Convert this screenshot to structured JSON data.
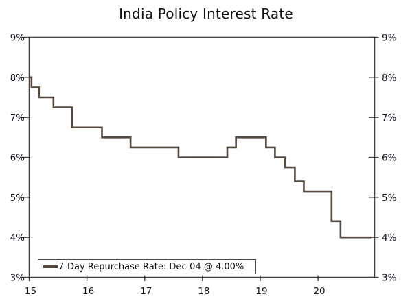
{
  "colors": {
    "background": "#ffffff",
    "axis": "#3f3f3f",
    "text": "#15151f",
    "line": "#564a3f"
  },
  "chart_data": {
    "type": "line",
    "style": "step-after",
    "title": "India Policy Interest Rate",
    "legend": {
      "label": "7-Day Repurchase Rate: Dec-04 @ 4.00%",
      "position": "bottom-left"
    },
    "grid": false,
    "y_axis_mirrored": true,
    "xlim": [
      2015,
      2020.98
    ],
    "ylim": [
      3,
      9
    ],
    "ylabel": "",
    "xlabel": "",
    "x_ticks": [
      {
        "t": 2015,
        "label": "15"
      },
      {
        "t": 2016,
        "label": "16"
      },
      {
        "t": 2017,
        "label": "17"
      },
      {
        "t": 2018,
        "label": "18"
      },
      {
        "t": 2019,
        "label": "19"
      },
      {
        "t": 2020,
        "label": "20"
      }
    ],
    "y_ticks": [
      {
        "v": 3,
        "label": "3%"
      },
      {
        "v": 4,
        "label": "4%"
      },
      {
        "v": 5,
        "label": "5%"
      },
      {
        "v": 6,
        "label": "6%"
      },
      {
        "v": 7,
        "label": "7%"
      },
      {
        "v": 8,
        "label": "8%"
      },
      {
        "v": 9,
        "label": "9%"
      }
    ],
    "series": [
      {
        "name": "7-Day Repurchase Rate",
        "color": "#564a3f",
        "start": {
          "t": 2015.0,
          "rate": 8.0
        },
        "steps": [
          {
            "t": 2015.04,
            "rate": 7.75
          },
          {
            "t": 2015.17,
            "rate": 7.5
          },
          {
            "t": 2015.42,
            "rate": 7.25
          },
          {
            "t": 2015.745,
            "rate": 6.75
          },
          {
            "t": 2016.26,
            "rate": 6.5
          },
          {
            "t": 2016.755,
            "rate": 6.25
          },
          {
            "t": 2017.585,
            "rate": 6.0
          },
          {
            "t": 2018.43,
            "rate": 6.25
          },
          {
            "t": 2018.58,
            "rate": 6.5
          },
          {
            "t": 2019.1,
            "rate": 6.25
          },
          {
            "t": 2019.255,
            "rate": 6.0
          },
          {
            "t": 2019.43,
            "rate": 5.75
          },
          {
            "t": 2019.6,
            "rate": 5.4
          },
          {
            "t": 2019.755,
            "rate": 5.15
          },
          {
            "t": 2020.235,
            "rate": 4.4
          },
          {
            "t": 2020.39,
            "rate": 4.0
          }
        ],
        "end": {
          "t": 2020.93,
          "rate": 4.0
        }
      }
    ]
  }
}
